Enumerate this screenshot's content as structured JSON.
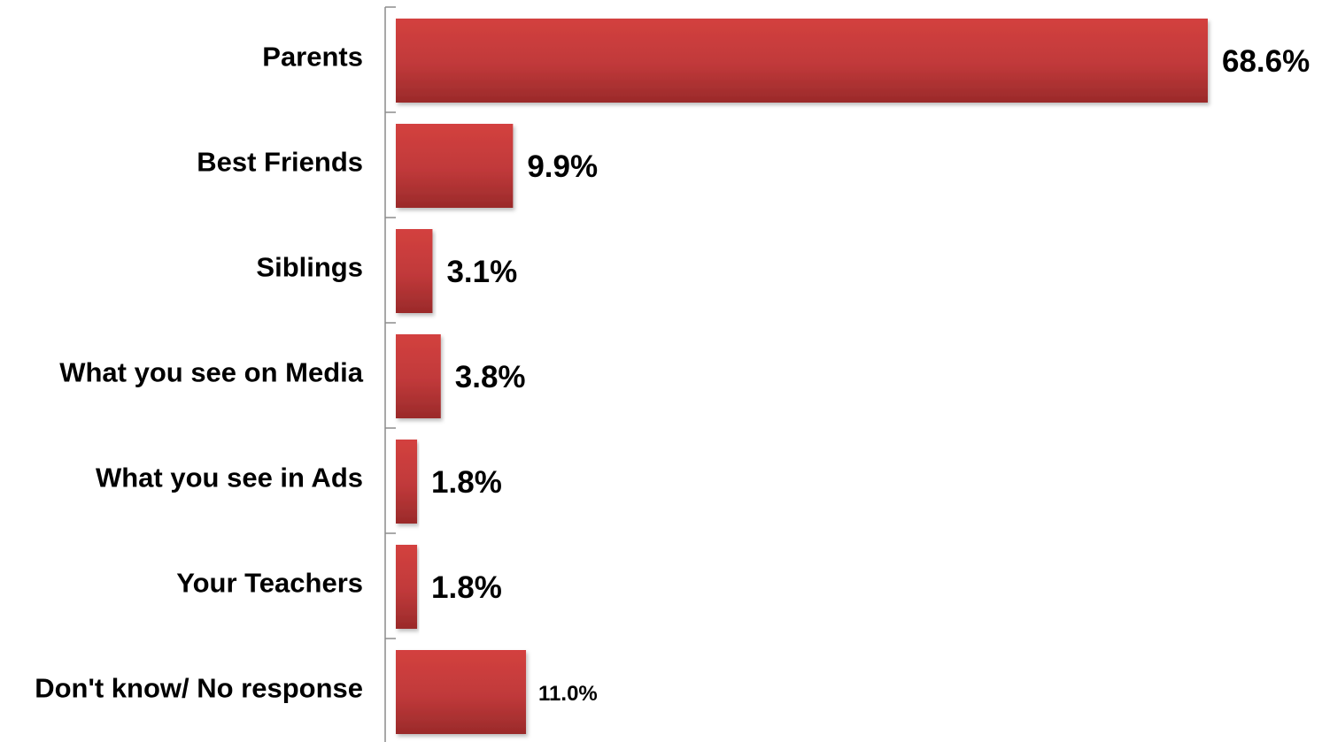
{
  "chart_data": {
    "type": "bar",
    "orientation": "horizontal",
    "categories": [
      "Parents",
      "Best Friends",
      "Siblings",
      "What you see on Media",
      "What you see in Ads",
      "Your Teachers",
      "Don't know/ No response"
    ],
    "values": [
      68.6,
      9.9,
      3.1,
      3.8,
      1.8,
      1.8,
      11.0
    ],
    "data_labels": [
      "68.6%",
      "9.9%",
      "3.1%",
      "3.8%",
      "1.8%",
      "1.8%",
      "11.0%"
    ],
    "title": "",
    "xlabel": "",
    "ylabel": "",
    "xlim": [
      0,
      68.6
    ],
    "grid": false,
    "legend": "none",
    "bar_color": "#c0393a",
    "bar_color_dark": "#9e2a2b"
  }
}
